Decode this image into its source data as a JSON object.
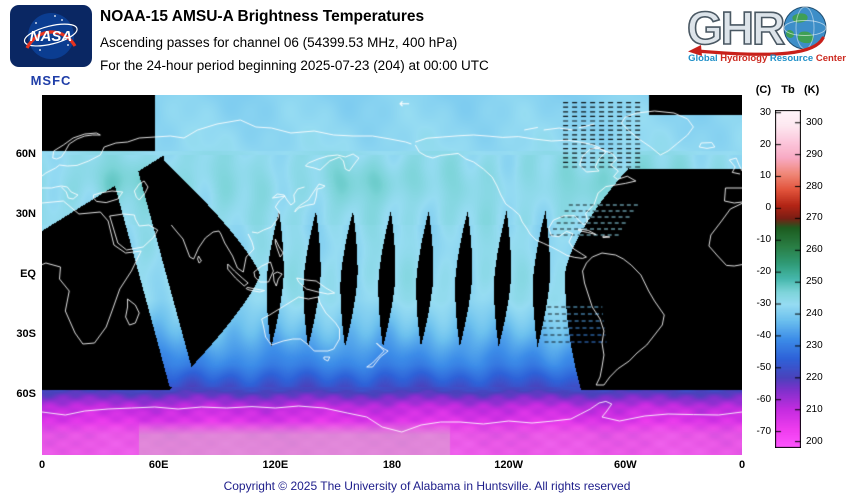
{
  "header": {
    "title": "NOAA-15 AMSU-A Brightness Temperatures",
    "subtitle1": "Ascending passes for channel 06 (54399.53 MHz, 400 hPa)",
    "subtitle2": "For the 24-hour period beginning 2025-07-23 (204) at 00:00 UTC",
    "nasa_logo": {
      "name": "NASA",
      "center": "MSFC"
    },
    "ghrc_logo": {
      "letters": "GHR",
      "acronym": "GHRC",
      "tagline": [
        {
          "text": "Global",
          "color": "#2090c8"
        },
        {
          "text": "Hydrology",
          "color": "#cc2a20"
        },
        {
          "text": "Resource",
          "color": "#2090c8"
        },
        {
          "text": "Center",
          "color": "#cc2a20"
        }
      ]
    }
  },
  "chart_data": {
    "type": "heatmap",
    "title": "NOAA-15 AMSU-A Brightness Temperatures",
    "subtitle": "Ascending passes for channel 06 (54399.53 MHz, 400 hPa)",
    "period": "24-hour period beginning 2025-07-23 (204) at 00:00 UTC",
    "value": "AMSU-A channel 06 brightness temperature Tb (K)",
    "projection": "equirectangular world map, longitude 0-360E left to right, latitude 90N-90S",
    "lon_ticks": [
      {
        "label": "0",
        "lon": 0
      },
      {
        "label": "60E",
        "lon": 60
      },
      {
        "label": "120E",
        "lon": 120
      },
      {
        "label": "180",
        "lon": 180
      },
      {
        "label": "120W",
        "lon": 240
      },
      {
        "label": "60W",
        "lon": 300
      },
      {
        "label": "0",
        "lon": 360
      }
    ],
    "lat_ticks": [
      {
        "label": "60N",
        "lat": 60
      },
      {
        "label": "30N",
        "lat": 30
      },
      {
        "label": "EQ",
        "lat": 0
      },
      {
        "label": "30S",
        "lat": -30
      },
      {
        "label": "60S",
        "lat": -60
      }
    ],
    "colorbar": {
      "unit_left": "(C)",
      "unit_mid": "Tb",
      "unit_right": "(K)",
      "celsius_ticks": [
        30,
        20,
        10,
        0,
        -10,
        -20,
        -30,
        -40,
        -50,
        -60,
        -70
      ],
      "kelvin_ticks": [
        300,
        290,
        280,
        270,
        260,
        250,
        240,
        230,
        220,
        210,
        200
      ],
      "bar_kelvin_range": [
        198,
        304
      ],
      "stops": [
        [
          198,
          "#ff55ff"
        ],
        [
          204,
          "#ee3cee"
        ],
        [
          210,
          "#c42ce0"
        ],
        [
          216,
          "#8030cc"
        ],
        [
          220,
          "#4a42bc"
        ],
        [
          226,
          "#2e62d8"
        ],
        [
          232,
          "#3c8ce8"
        ],
        [
          238,
          "#6cc0ee"
        ],
        [
          243,
          "#96dcf2"
        ],
        [
          247,
          "#7cd4d8"
        ],
        [
          251,
          "#46b8ac"
        ],
        [
          256,
          "#2f9a74"
        ],
        [
          261,
          "#2a7f46"
        ],
        [
          267,
          "#1d5c20"
        ],
        [
          270,
          "#7a1e14"
        ],
        [
          274,
          "#b32415"
        ],
        [
          279,
          "#e2543c"
        ],
        [
          284,
          "#f08878"
        ],
        [
          289,
          "#f8aac4"
        ],
        [
          294,
          "#fcc8dc"
        ],
        [
          299,
          "#fde8f0"
        ],
        [
          304,
          "#fff6fa"
        ]
      ]
    },
    "map_arrow_glyph": "←",
    "typical_values": {
      "northern_swaths_k": 243,
      "tropics_k": 243,
      "southern_midlat_k": 230,
      "antarctic_k": 205
    }
  },
  "footer": {
    "copyright": "Copyright © 2025 The University of Alabama in Huntsville. All rights reserved"
  }
}
